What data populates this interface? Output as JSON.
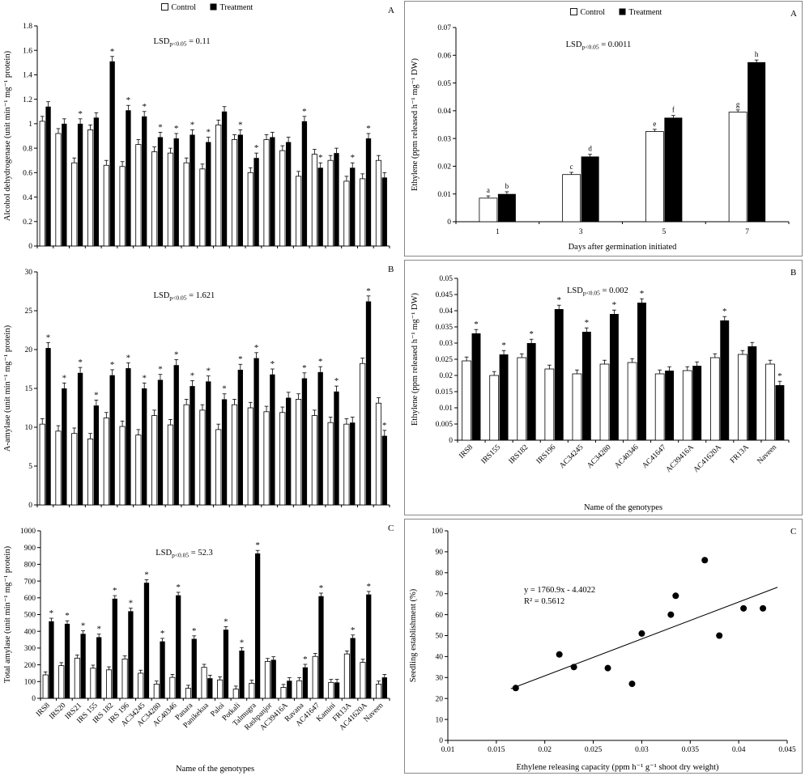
{
  "legend": {
    "control": "Control",
    "treatment": "Treatment"
  },
  "chart_data": [
    {
      "id": "adh",
      "panel_label": "A",
      "type": "bar",
      "ylabel": "Alcohol dehydrogenase (unit min⁻¹ mg⁻¹ protein)",
      "xlabel": "",
      "ylim": [
        0,
        1.8
      ],
      "ytick": 0.2,
      "err": 0.04,
      "lsd": {
        "label": "LSD",
        "sub": "p<0.05",
        "value": "0.11"
      },
      "legend_position": "top",
      "grid": false,
      "categories": [
        "IRS8",
        "IRS20",
        "IRS21",
        "IRS 155",
        "IRS 182",
        "IRS 196",
        "AC34245",
        "AC34280",
        "AC40346",
        "Panara",
        "Panikekua",
        "Paloi",
        "Potkali",
        "Talmugra",
        "Rashpanjor",
        "AC39416A",
        "Ravana",
        "AC41647",
        "Kamini",
        "FR13A",
        "AC41620A",
        "Naveen"
      ],
      "series": [
        {
          "name": "Control",
          "values": [
            1.02,
            0.92,
            0.68,
            0.95,
            0.66,
            0.65,
            0.83,
            0.77,
            0.76,
            0.68,
            0.63,
            0.99,
            0.87,
            0.6,
            0.87,
            0.78,
            0.57,
            0.75,
            0.7,
            0.53,
            0.55,
            0.7
          ]
        },
        {
          "name": "Treatment",
          "values": [
            1.14,
            1.0,
            1.0,
            1.05,
            1.51,
            1.11,
            1.06,
            0.89,
            0.88,
            0.91,
            0.85,
            1.1,
            0.91,
            0.72,
            0.89,
            0.85,
            1.02,
            0.64,
            0.76,
            0.64,
            0.88,
            0.56
          ],
          "asterisks": [
            false,
            false,
            true,
            false,
            true,
            true,
            true,
            true,
            true,
            true,
            true,
            false,
            true,
            true,
            false,
            false,
            true,
            true,
            false,
            true,
            true,
            false
          ]
        }
      ]
    },
    {
      "id": "eth_days",
      "panel_label": "A",
      "type": "bar",
      "ylabel": "Ethylene (ppm released h⁻¹ mg⁻¹ DW)",
      "xlabel": "Days after germination initiated",
      "ylim": [
        0,
        0.07
      ],
      "ytick": 0.01,
      "err": 0.0008,
      "lsd": {
        "label": "LSD",
        "sub": "p<0.05",
        "value": "0.0011"
      },
      "legend_position": "top",
      "grid": false,
      "categories": [
        "1",
        "3",
        "5",
        "7"
      ],
      "series": [
        {
          "name": "Control",
          "values": [
            0.0085,
            0.017,
            0.0325,
            0.0395
          ],
          "letters": [
            "a",
            "c",
            "e",
            "g"
          ]
        },
        {
          "name": "Treatment",
          "values": [
            0.01,
            0.0235,
            0.0375,
            0.0575
          ],
          "letters": [
            "b",
            "d",
            "f",
            "h"
          ]
        }
      ]
    },
    {
      "id": "amylase",
      "panel_label": "B",
      "type": "bar",
      "ylabel": "Α-amylase (unit min⁻¹ mg⁻¹ protein)",
      "xlabel": "",
      "ylim": [
        0,
        30
      ],
      "ytick": 5,
      "err": 0.7,
      "lsd": {
        "label": "LSD",
        "sub": "p<0.05",
        "value": "1.621"
      },
      "legend_position": "none",
      "grid": false,
      "categories": [
        "IRS8",
        "IRS20",
        "IRS21",
        "IRS 155",
        "IRS 182",
        "IRS 196",
        "AC34245",
        "AC34280",
        "AC40346",
        "Panara",
        "Panikekua",
        "Paloi",
        "Potkali",
        "Talmugra",
        "Rashpanjor",
        "AC39416A",
        "Ravana",
        "AC41647",
        "Kamini",
        "FR13A",
        "AC41620A",
        "Naveen"
      ],
      "series": [
        {
          "name": "Control",
          "values": [
            10.4,
            9.5,
            9.2,
            8.5,
            11.2,
            10.1,
            9.0,
            11.5,
            10.3,
            12.9,
            12.2,
            9.7,
            12.9,
            12.5,
            12.0,
            11.9,
            13.6,
            11.5,
            10.6,
            10.4,
            18.2,
            13.1
          ]
        },
        {
          "name": "Treatment",
          "values": [
            20.2,
            15.0,
            17.0,
            12.8,
            16.7,
            17.6,
            15.0,
            16.1,
            18.0,
            15.3,
            15.9,
            13.6,
            17.4,
            18.9,
            16.8,
            13.8,
            16.3,
            17.1,
            14.6,
            10.6,
            26.2,
            8.9
          ],
          "asterisks": [
            true,
            true,
            true,
            true,
            true,
            true,
            true,
            true,
            true,
            true,
            true,
            true,
            true,
            true,
            true,
            false,
            true,
            true,
            true,
            false,
            true,
            true
          ]
        }
      ]
    },
    {
      "id": "eth_geno",
      "panel_label": "B",
      "type": "bar",
      "ylabel": "Ethylene (ppm released h⁻¹ mg⁻¹ DW)",
      "xlabel": "Name of the genotypes",
      "ylim": [
        0,
        0.05
      ],
      "ytick": 0.005,
      "err": 0.0012,
      "lsd": {
        "label": "LSD",
        "sub": "p<0.05",
        "value": "0.002"
      },
      "legend_position": "none",
      "grid": false,
      "categories": [
        "IRS8",
        "IRS155",
        "IRS182",
        "IRS196",
        "AC34245",
        "AC34280",
        "AC40346",
        "AC41647",
        "AC39416A",
        "AC41620A",
        "FR13A",
        "Naveen"
      ],
      "series": [
        {
          "name": "Control",
          "values": [
            0.0245,
            0.02,
            0.0255,
            0.022,
            0.0205,
            0.0235,
            0.024,
            0.0205,
            0.0215,
            0.0255,
            0.0265,
            0.0235
          ]
        },
        {
          "name": "Treatment",
          "values": [
            0.033,
            0.0265,
            0.03,
            0.0405,
            0.0335,
            0.039,
            0.0425,
            0.0215,
            0.023,
            0.037,
            0.029,
            0.017
          ],
          "asterisks": [
            true,
            true,
            true,
            true,
            true,
            true,
            true,
            false,
            false,
            true,
            false,
            true
          ]
        }
      ]
    },
    {
      "id": "total",
      "panel_label": "C",
      "type": "bar",
      "ylabel": "Total amylase (unit min⁻¹ mg⁻¹ protein)",
      "xlabel": "Name of the genotypes",
      "ylim": [
        0,
        1000
      ],
      "ytick": 100,
      "err": 18,
      "lsd": {
        "label": "LSD",
        "sub": "p<0.05",
        "value": "52.3"
      },
      "legend_position": "none",
      "grid": false,
      "categories": [
        "IRS8",
        "IRS20",
        "IRS21",
        "IRS 155",
        "IRS 182",
        "IRS 196",
        "AC34245",
        "AC34280",
        "AC40346",
        "Panara",
        "Panikekua",
        "Paloi",
        "Potkali",
        "Talmugra",
        "Rashpanjor",
        "AC39416A",
        "Ravana",
        "AC41647",
        "Kamini",
        "FR13A",
        "AC41620A",
        "Naveen"
      ],
      "series": [
        {
          "name": "Control",
          "values": [
            140,
            195,
            240,
            180,
            170,
            235,
            150,
            85,
            125,
            60,
            185,
            110,
            55,
            90,
            220,
            65,
            105,
            250,
            95,
            265,
            215,
            85
          ]
        },
        {
          "name": "Treatment",
          "values": [
            460,
            445,
            385,
            365,
            595,
            520,
            690,
            340,
            615,
            355,
            120,
            410,
            285,
            865,
            230,
            105,
            185,
            610,
            95,
            360,
            620,
            125
          ],
          "asterisks": [
            true,
            true,
            true,
            true,
            true,
            true,
            true,
            true,
            true,
            true,
            false,
            true,
            true,
            true,
            false,
            false,
            true,
            true,
            false,
            true,
            true,
            false
          ]
        }
      ]
    },
    {
      "id": "scatter",
      "panel_label": "C",
      "type": "scatter",
      "ylabel": "Seedling establishment (%)",
      "xlabel": "Ethylene releasing capacity (ppm h⁻¹ g⁻¹ shoot dry weight)",
      "xlim": [
        0.01,
        0.045
      ],
      "xtick": 0.005,
      "ylim": [
        0,
        100
      ],
      "ytick": 10,
      "equation": "y = 1760.9x - 4.4022",
      "r_squared": "R² = 0.5612",
      "trend": {
        "slope": 1760.9,
        "intercept": -4.4022,
        "x_start": 0.0165,
        "x_end": 0.044
      },
      "grid": false,
      "points": [
        [
          0.017,
          25
        ],
        [
          0.0215,
          41
        ],
        [
          0.023,
          35
        ],
        [
          0.0265,
          34.5
        ],
        [
          0.029,
          27
        ],
        [
          0.03,
          51
        ],
        [
          0.033,
          60
        ],
        [
          0.0335,
          69
        ],
        [
          0.0365,
          86
        ],
        [
          0.038,
          50
        ],
        [
          0.0405,
          63
        ],
        [
          0.0425,
          63
        ]
      ]
    }
  ]
}
